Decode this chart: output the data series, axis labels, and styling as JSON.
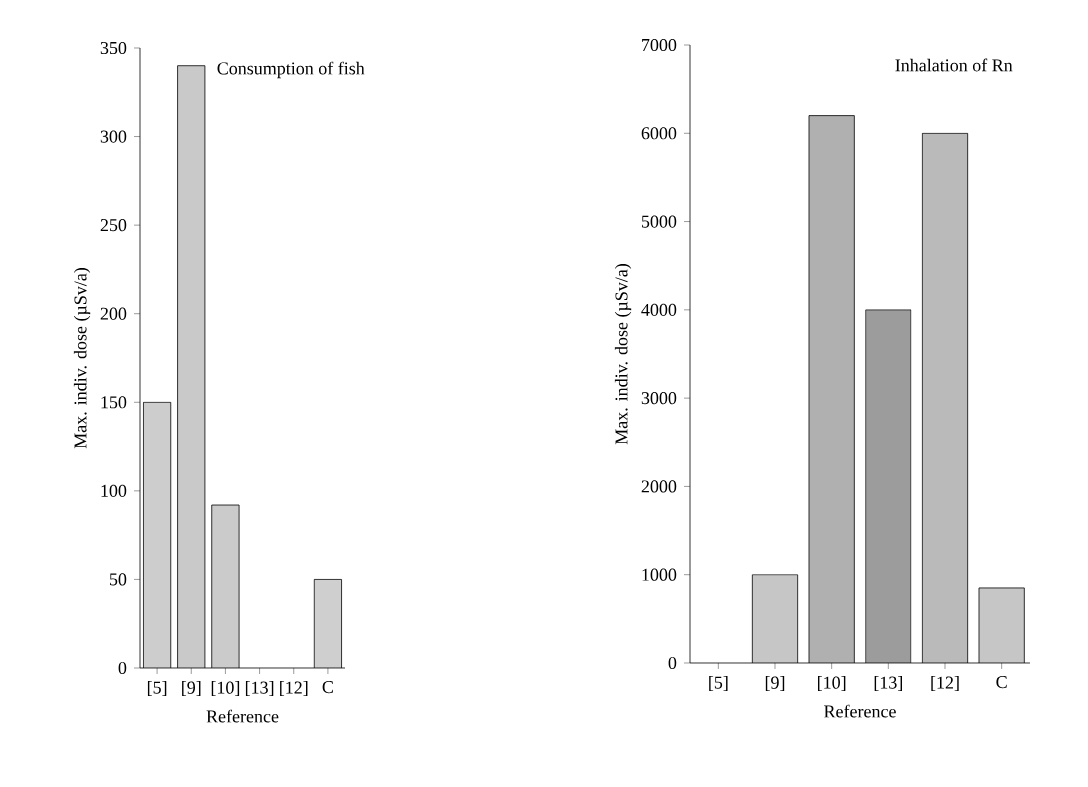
{
  "chart_data": [
    {
      "type": "bar",
      "title": "Consumption of fish",
      "xlabel": "Reference",
      "ylabel": "Max. indiv. dose (µSv/a)",
      "categories": [
        "[5]",
        "[9]",
        "[10]",
        "[13]",
        "[12]",
        "C"
      ],
      "values": [
        150,
        340,
        92,
        null,
        null,
        50
      ],
      "colors": [
        "#cdcdcd",
        "#c9c9c9",
        "#cbcbcb",
        null,
        null,
        "#cfcfcf"
      ],
      "ylim": [
        0,
        350
      ],
      "yticks": [
        0,
        50,
        100,
        150,
        200,
        250,
        300,
        350
      ]
    },
    {
      "type": "bar",
      "title": "Inhalation of Rn",
      "xlabel": "Reference",
      "ylabel": "Max. indiv. dose (µSv/a)",
      "categories": [
        "[5]",
        "[9]",
        "[10]",
        "[13]",
        "[12]",
        "C"
      ],
      "values": [
        null,
        1000,
        6200,
        4000,
        6000,
        850
      ],
      "colors": [
        null,
        "#c6c6c6",
        "#b0b0b0",
        "#9c9c9c",
        "#bababa",
        "#c6c6c6"
      ],
      "ylim": [
        0,
        7000
      ],
      "yticks": [
        0,
        1000,
        2000,
        3000,
        4000,
        5000,
        6000,
        7000
      ]
    }
  ]
}
